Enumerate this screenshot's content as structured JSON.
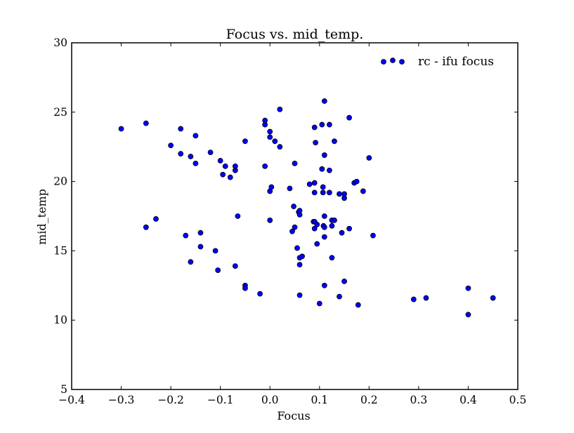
{
  "chart_data": {
    "type": "scatter",
    "title": "Focus vs. mid_temp.",
    "xlabel": "Focus",
    "ylabel": "mid_temp",
    "xlim": [
      -0.4,
      0.5
    ],
    "ylim": [
      5,
      30
    ],
    "xticks": [
      "−0.4",
      "−0.3",
      "−0.2",
      "−0.1",
      "0.0",
      "0.1",
      "0.2",
      "0.3",
      "0.4",
      "0.5"
    ],
    "yticks": [
      "5",
      "10",
      "15",
      "20",
      "25",
      "30"
    ],
    "legend_position": "top-right",
    "grid": false,
    "marker_color": "#0000ff",
    "series": [
      {
        "name": "rc - ifu focus",
        "points": [
          [
            -0.3,
            23.8
          ],
          [
            -0.25,
            24.2
          ],
          [
            -0.25,
            16.7
          ],
          [
            -0.23,
            17.3
          ],
          [
            -0.2,
            22.6
          ],
          [
            -0.18,
            23.8
          ],
          [
            -0.18,
            22.0
          ],
          [
            -0.17,
            16.1
          ],
          [
            -0.16,
            21.8
          ],
          [
            -0.16,
            14.2
          ],
          [
            -0.15,
            23.3
          ],
          [
            -0.15,
            21.3
          ],
          [
            -0.14,
            16.3
          ],
          [
            -0.14,
            15.3
          ],
          [
            -0.12,
            22.1
          ],
          [
            -0.11,
            15.0
          ],
          [
            -0.105,
            13.6
          ],
          [
            -0.1,
            21.5
          ],
          [
            -0.095,
            20.5
          ],
          [
            -0.09,
            21.1
          ],
          [
            -0.08,
            20.3
          ],
          [
            -0.07,
            21.1
          ],
          [
            -0.07,
            20.8
          ],
          [
            -0.07,
            13.9
          ],
          [
            -0.065,
            17.5
          ],
          [
            -0.05,
            22.9
          ],
          [
            -0.05,
            12.5
          ],
          [
            -0.05,
            12.3
          ],
          [
            -0.02,
            11.9
          ],
          [
            -0.01,
            24.4
          ],
          [
            -0.01,
            24.1
          ],
          [
            -0.01,
            21.1
          ],
          [
            0.0,
            23.6
          ],
          [
            0.0,
            23.2
          ],
          [
            0.0,
            19.3
          ],
          [
            0.003,
            19.6
          ],
          [
            0.0,
            17.2
          ],
          [
            0.01,
            22.9
          ],
          [
            0.02,
            22.5
          ],
          [
            0.02,
            25.2
          ],
          [
            0.04,
            19.5
          ],
          [
            0.045,
            16.4
          ],
          [
            0.05,
            21.3
          ],
          [
            0.048,
            18.2
          ],
          [
            0.05,
            16.7
          ],
          [
            0.055,
            15.2
          ],
          [
            0.058,
            17.8
          ],
          [
            0.06,
            17.9
          ],
          [
            0.06,
            17.6
          ],
          [
            0.06,
            14.5
          ],
          [
            0.06,
            14.0
          ],
          [
            0.06,
            11.8
          ],
          [
            0.065,
            14.6
          ],
          [
            0.08,
            19.8
          ],
          [
            0.088,
            17.1
          ],
          [
            0.09,
            19.9
          ],
          [
            0.09,
            19.2
          ],
          [
            0.09,
            17.1
          ],
          [
            0.09,
            16.6
          ],
          [
            0.09,
            23.9
          ],
          [
            0.092,
            22.8
          ],
          [
            0.095,
            16.9
          ],
          [
            0.095,
            15.5
          ],
          [
            0.1,
            11.2
          ],
          [
            0.105,
            24.1
          ],
          [
            0.105,
            20.9
          ],
          [
            0.107,
            19.6
          ],
          [
            0.107,
            19.2
          ],
          [
            0.108,
            16.8
          ],
          [
            0.11,
            25.8
          ],
          [
            0.11,
            21.9
          ],
          [
            0.11,
            17.5
          ],
          [
            0.11,
            16.7
          ],
          [
            0.11,
            16.0
          ],
          [
            0.11,
            12.5
          ],
          [
            0.12,
            24.1
          ],
          [
            0.12,
            20.8
          ],
          [
            0.12,
            19.2
          ],
          [
            0.125,
            17.2
          ],
          [
            0.125,
            16.8
          ],
          [
            0.125,
            14.5
          ],
          [
            0.13,
            22.9
          ],
          [
            0.13,
            17.2
          ],
          [
            0.14,
            19.1
          ],
          [
            0.14,
            11.7
          ],
          [
            0.145,
            16.3
          ],
          [
            0.15,
            19.1
          ],
          [
            0.15,
            18.8
          ],
          [
            0.15,
            12.8
          ],
          [
            0.16,
            24.6
          ],
          [
            0.16,
            16.6
          ],
          [
            0.17,
            19.9
          ],
          [
            0.175,
            20.0
          ],
          [
            0.178,
            11.1
          ],
          [
            0.188,
            19.3
          ],
          [
            0.2,
            21.7
          ],
          [
            0.208,
            16.1
          ],
          [
            0.29,
            11.5
          ],
          [
            0.315,
            11.6
          ],
          [
            0.4,
            12.3
          ],
          [
            0.4,
            10.4
          ],
          [
            0.45,
            11.6
          ]
        ]
      }
    ]
  }
}
